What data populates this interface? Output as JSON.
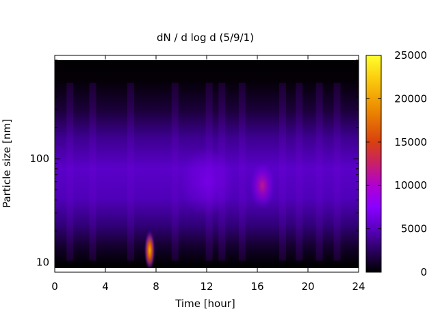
{
  "chart_data": {
    "type": "heatmap",
    "title": "dN / d log d (5/9/1)",
    "xlabel": "Time [hour]",
    "ylabel": "Particle size [nm]",
    "xlim": [
      0,
      24
    ],
    "ylim_log_nm": [
      8,
      1000
    ],
    "y_scale": "log",
    "x_ticks": [
      "0",
      "4",
      "8",
      "12",
      "16",
      "20",
      "24"
    ],
    "x_tick_values": [
      0,
      4,
      8,
      12,
      16,
      20,
      24
    ],
    "y_ticks": [
      "10",
      "100"
    ],
    "y_tick_values": [
      10,
      100
    ],
    "colorbar": {
      "range": [
        0,
        25000
      ],
      "ticks": [
        "0",
        "5000",
        "10000",
        "15000",
        "20000",
        "25000"
      ],
      "tick_values": [
        0,
        5000,
        10000,
        15000,
        20000,
        25000
      ],
      "palette": [
        "#000000",
        "#2a0060",
        "#5a00c0",
        "#8a00ff",
        "#b000d0",
        "#c8206a",
        "#d84010",
        "#ec8a00",
        "#fbd010",
        "#ffff30"
      ]
    },
    "features": [
      {
        "time_hour": 7.5,
        "size_nm": 13,
        "value": 19000
      },
      {
        "time_hour": 16.4,
        "size_nm": 55,
        "value": 10500
      },
      {
        "time_hour": 12,
        "size_nm": 60,
        "value": 6000
      }
    ]
  }
}
